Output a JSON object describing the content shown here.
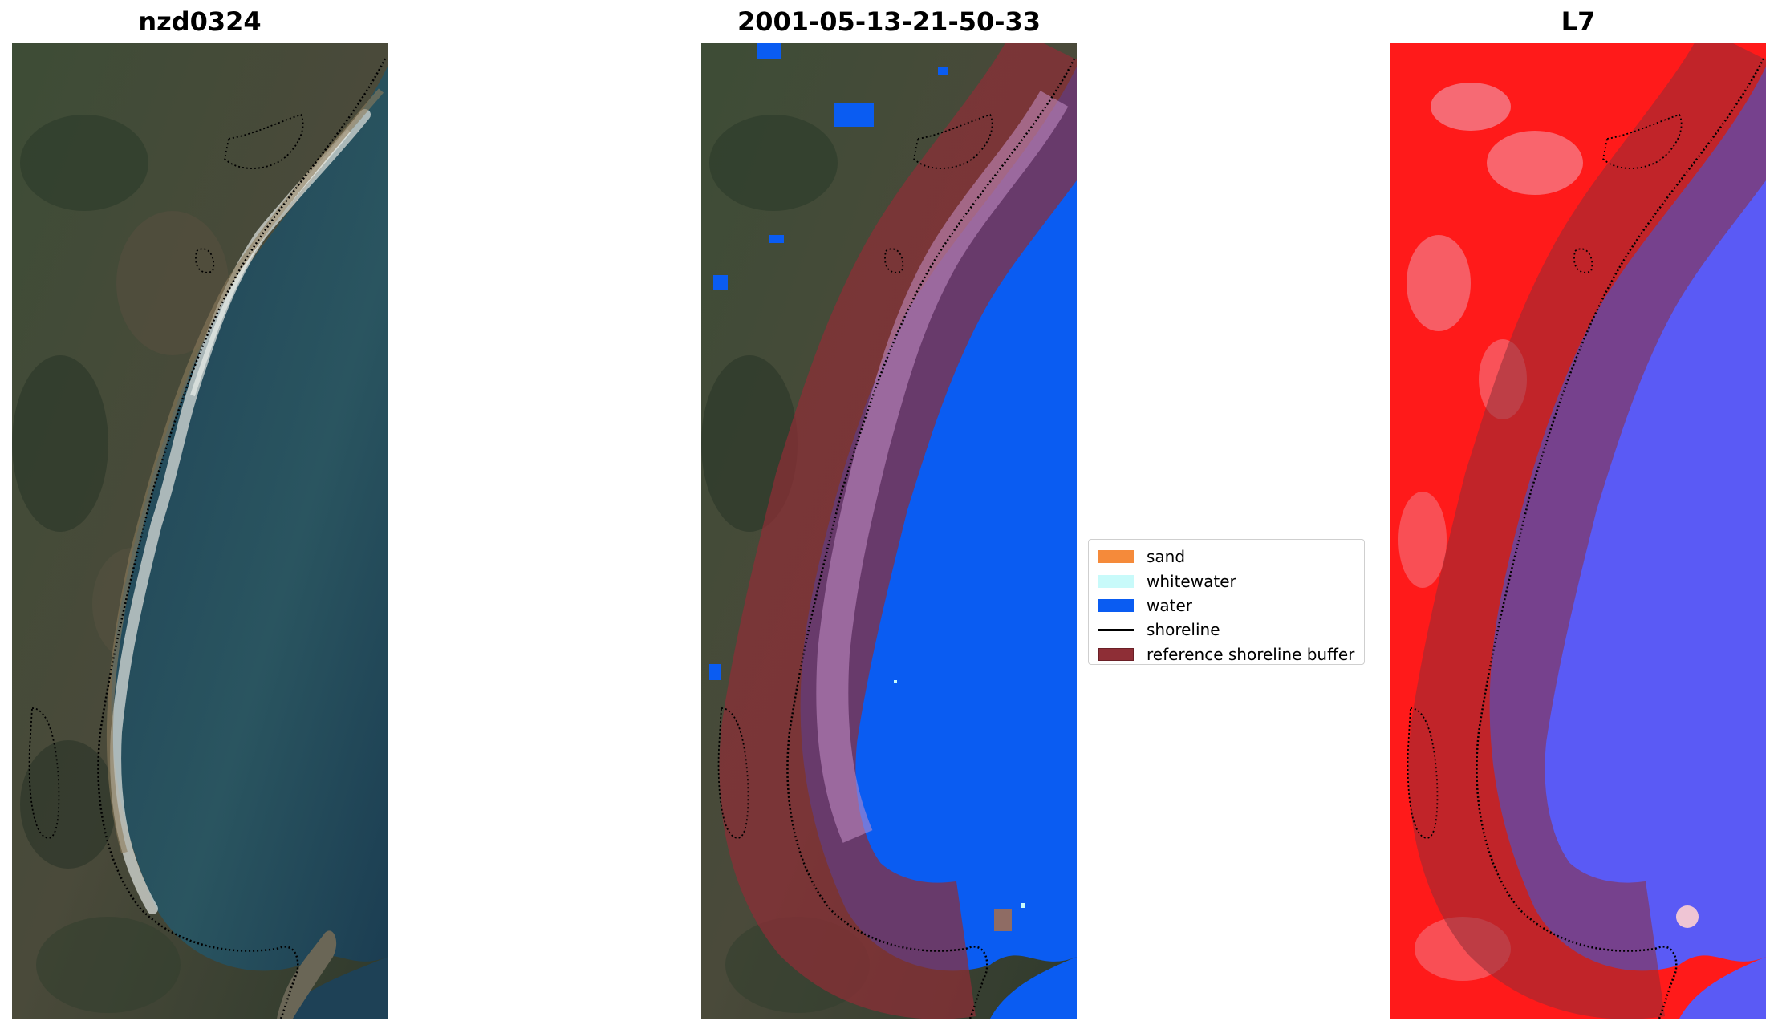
{
  "panels": [
    {
      "title": "nzd0324"
    },
    {
      "title": "2001-05-13-21-50-33"
    },
    {
      "title": "L7"
    }
  ],
  "legend": {
    "items": [
      {
        "label": "sand",
        "color": "#f58a3a",
        "kind": "patch"
      },
      {
        "label": "whitewater",
        "color": "#c8fafa",
        "kind": "patch"
      },
      {
        "label": "water",
        "color": "#0a5cf2",
        "kind": "patch"
      },
      {
        "label": "shoreline",
        "color": "#000000",
        "kind": "line"
      },
      {
        "label": "reference shoreline buffer",
        "color": "#8e2e36",
        "kind": "patch"
      }
    ]
  },
  "colors": {
    "land": "#3b4a34",
    "sea": "#22485a",
    "classified_water": "#0a5cf2",
    "index_land": "#ff1a1a",
    "index_water": "#5a5af5",
    "buffer": "#8e2e36"
  }
}
